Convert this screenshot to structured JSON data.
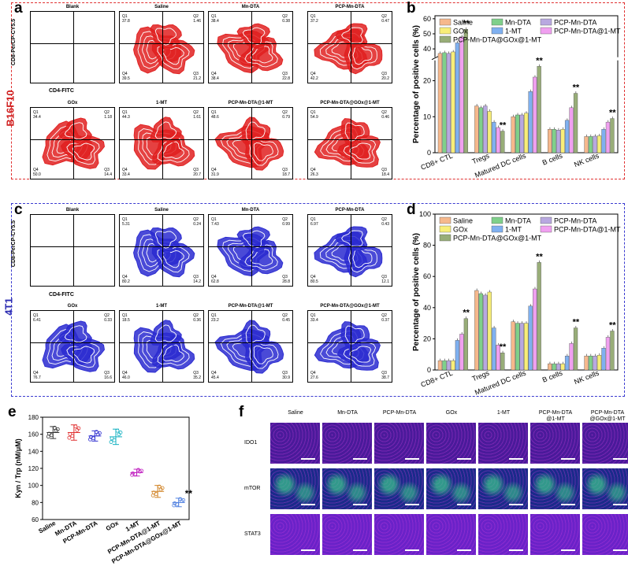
{
  "panels": {
    "a": "a",
    "b": "b",
    "c": "c",
    "d": "d",
    "e": "e",
    "f": "f"
  },
  "side_labels": {
    "top": "B16F10",
    "bottom": "4T1"
  },
  "flow_axes": {
    "x": "CD4-FITC",
    "y": "CD8-PerCP-CY5.5"
  },
  "flow_a": [
    {
      "title": "Blank",
      "q1": "",
      "q2": "",
      "q3": "",
      "q4": ""
    },
    {
      "title": "Saline",
      "q1": "Q1\n37.8",
      "q2": "Q2\n1.46",
      "q3": "Q3\n21.2",
      "q4": "Q4\n39.5"
    },
    {
      "title": "Mn-DTA",
      "q1": "Q1\n38.4",
      "q2": "Q2\n0.38",
      "q3": "Q3\n22.8",
      "q4": "Q4\n38.4"
    },
    {
      "title": "PCP-Mn-DTA",
      "q1": "Q1\n37.2",
      "q2": "Q2\n0.47",
      "q3": "Q3\n20.2",
      "q4": "Q4\n42.2"
    },
    {
      "title": "GOx",
      "q1": "Q1\n34.4",
      "q2": "Q2\n1.18",
      "q3": "Q3\n14.4",
      "q4": "Q4\n50.0"
    },
    {
      "title": "1-MT",
      "q1": "Q1\n44.3",
      "q2": "Q2\n1.61",
      "q3": "Q3\n20.7",
      "q4": "Q4\n33.4"
    },
    {
      "title": "PCP-Mn-DTA@1-MT",
      "q1": "Q1\n48.6",
      "q2": "Q2\n0.79",
      "q3": "Q3\n18.7",
      "q4": "Q4\n31.9"
    },
    {
      "title": "PCP-Mn-DTA@GOx@1-MT",
      "q1": "Q1\n54.9",
      "q2": "Q2\n0.46",
      "q3": "Q3\n18.4",
      "q4": "Q4\n26.3"
    }
  ],
  "flow_c": [
    {
      "title": "Blank",
      "q1": "",
      "q2": "",
      "q3": "",
      "q4": ""
    },
    {
      "title": "Saline",
      "q1": "Q1\n5.31",
      "q2": "Q2\n0.24",
      "q3": "Q3\n14.2",
      "q4": "Q4\n80.2"
    },
    {
      "title": "Mn-DTA",
      "q1": "Q1\n7.43",
      "q2": "Q2\n0.99",
      "q3": "Q3\n28.8",
      "q4": "Q4\n62.8"
    },
    {
      "title": "PCP-Mn-DTA",
      "q1": "Q1\n6.97",
      "q2": "Q2\n0.43",
      "q3": "Q3\n12.1",
      "q4": "Q4\n80.5"
    },
    {
      "title": "GOx",
      "q1": "Q1\n6.41",
      "q2": "Q2\n0.33",
      "q3": "Q3\n16.6",
      "q4": "Q4\n76.7"
    },
    {
      "title": "1-MT",
      "q1": "Q1\n18.5",
      "q2": "Q2\n0.36",
      "q3": "Q3\n35.2",
      "q4": "Q4\n46.0"
    },
    {
      "title": "PCP-Mn-DTA@1-MT",
      "q1": "Q1\n23.2",
      "q2": "Q2\n0.45",
      "q3": "Q3\n30.9",
      "q4": "Q4\n45.4"
    },
    {
      "title": "PCP-Mn-DTA@GOx@1-MT",
      "q1": "Q1\n33.4",
      "q2": "Q2\n0.37",
      "q3": "Q3\n38.7",
      "q4": "Q4\n27.6"
    }
  ],
  "colors": {
    "red": "#e02020",
    "blue": "#2a2ad0",
    "series": [
      "#f6b88c",
      "#7fd08a",
      "#b8a8e0",
      "#f8ee78",
      "#7fb0f0",
      "#f0a0f0",
      "#98ad78"
    ]
  },
  "chart_data": [
    {
      "id": "b",
      "type": "bar",
      "title": "",
      "ylabel": "Percentage of positive cells (%)",
      "categories": [
        "CD8+ CTL",
        "Tregs",
        "Matured DC cells",
        "B cells",
        "NK cells"
      ],
      "legend": [
        "Saline",
        "Mn-DTA",
        "PCP-Mn-DTA",
        "GOx",
        "1-MT",
        "PCP-Mn-DTA@1-MT",
        "PCP-Mn-DTA@GOx@1-MT"
      ],
      "series": [
        {
          "name": "Saline",
          "values": [
            37,
            13,
            10,
            6.5,
            4.5
          ]
        },
        {
          "name": "Mn-DTA",
          "values": [
            37.5,
            12.5,
            10.5,
            6.5,
            4.5
          ]
        },
        {
          "name": "PCP-Mn-DTA",
          "values": [
            37,
            13,
            10.5,
            6.3,
            4.6
          ]
        },
        {
          "name": "GOx",
          "values": [
            38,
            11.5,
            11,
            6.5,
            4.7
          ]
        },
        {
          "name": "1-MT",
          "values": [
            44,
            8.5,
            17,
            9,
            6.5
          ]
        },
        {
          "name": "PCP-Mn-DTA@1-MT",
          "values": [
            48,
            7,
            21,
            12.5,
            8.5
          ]
        },
        {
          "name": "PCP-Mn-DTA@GOx@1-MT",
          "values": [
            53,
            6,
            24,
            16.5,
            9.5
          ]
        }
      ],
      "y_lower_ticks": [
        "0",
        "10",
        "20"
      ],
      "y_upper_ticks": [
        "40",
        "50",
        "60"
      ],
      "break_lower": [
        0,
        25
      ],
      "break_upper": [
        35,
        62
      ],
      "stars": [
        "**",
        "**",
        "**",
        "**",
        "**"
      ]
    },
    {
      "id": "d",
      "type": "bar",
      "title": "",
      "ylabel": "Percentage of positive cells (%)",
      "categories": [
        "CD8+ CTL",
        "Tregs",
        "Matured DC cells",
        "B cells",
        "NK cells"
      ],
      "legend": [
        "Saline",
        "Mn-DTA",
        "PCP-Mn-DTA",
        "GOx",
        "1-MT",
        "PCP-Mn-DTA@1-MT",
        "PCP-Mn-DTA@GOx@1-MT"
      ],
      "series": [
        {
          "name": "Saline",
          "values": [
            6,
            51,
            31,
            4,
            9
          ]
        },
        {
          "name": "Mn-DTA",
          "values": [
            6,
            49,
            30,
            4,
            9
          ]
        },
        {
          "name": "PCP-Mn-DTA",
          "values": [
            6,
            48,
            30,
            4,
            9
          ]
        },
        {
          "name": "GOx",
          "values": [
            6,
            50,
            30,
            4,
            9.5
          ]
        },
        {
          "name": "1-MT",
          "values": [
            19,
            27,
            41,
            9,
            14
          ]
        },
        {
          "name": "PCP-Mn-DTA@1-MT",
          "values": [
            23,
            16,
            52,
            17,
            21
          ]
        },
        {
          "name": "PCP-Mn-DTA@GOx@1-MT",
          "values": [
            33,
            11,
            69,
            27,
            25
          ]
        }
      ],
      "y_ticks": [
        "0",
        "20",
        "40",
        "60",
        "80",
        "100"
      ],
      "ylim": [
        0,
        100
      ],
      "stars": [
        "**",
        "**",
        "**",
        "**",
        "**"
      ]
    },
    {
      "id": "e",
      "type": "scatter",
      "ylabel": "Kyn / Trp (nM/μM)",
      "categories": [
        "Saline",
        "Mn-DTA",
        "PCP-Mn-DTA",
        "GOx",
        "1-MT",
        "PCP-Mn-DTA@1-MT",
        "PCP-Mn-DTA@GOx@1-MT"
      ],
      "means": [
        162,
        162,
        158,
        157,
        115,
        93,
        80
      ],
      "sd": [
        7,
        9,
        6,
        9,
        4,
        7,
        5
      ],
      "ylim": [
        60,
        180
      ],
      "y_ticks": [
        "60",
        "80",
        "100",
        "120",
        "140",
        "160",
        "180"
      ],
      "star": "**"
    }
  ],
  "panel_f": {
    "columns": [
      "Saline",
      "Mn-DTA",
      "PCP-Mn-DTA",
      "GOx",
      "1-MT",
      "PCP-Mn-DTA\n@1-MT",
      "PCP-Mn-DTA\n@GOx@1-MT"
    ],
    "rows": [
      "IDO1",
      "mTOR",
      "STAT3"
    ]
  }
}
